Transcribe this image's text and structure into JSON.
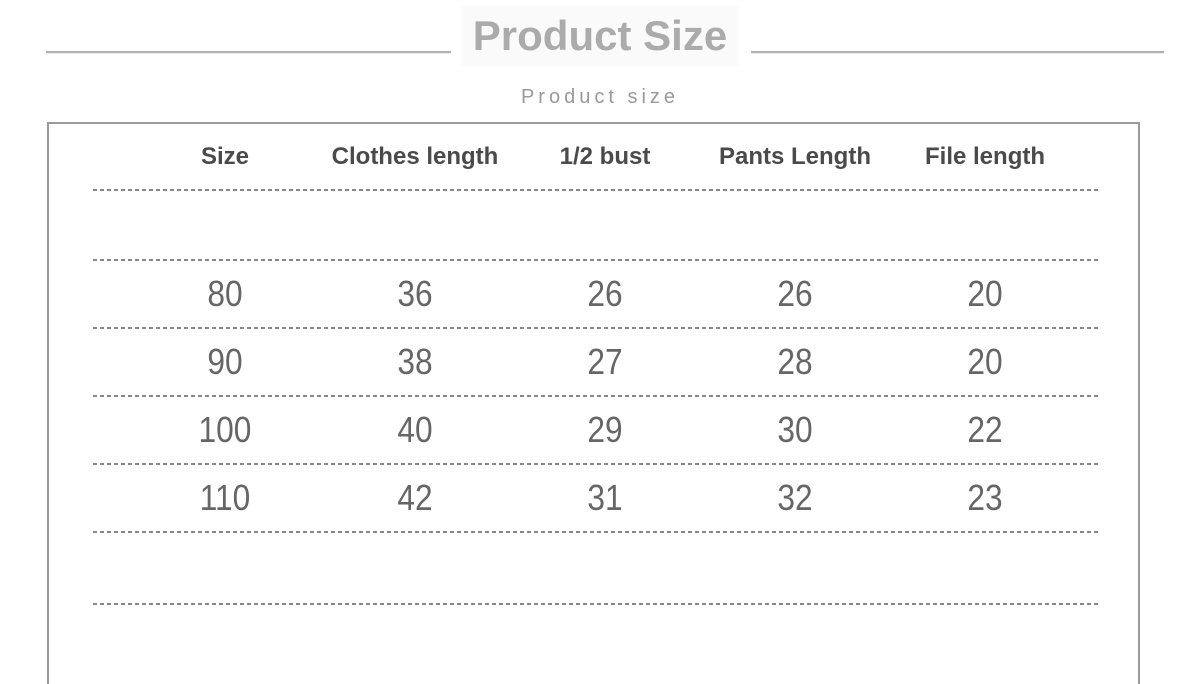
{
  "header": {
    "title": "Product Size",
    "subtitle": "Product size"
  },
  "table": {
    "headers": [
      "Size",
      "Clothes length",
      "1/2 bust",
      "Pants Length",
      "File length"
    ],
    "rows": [
      [
        "80",
        "36",
        "26",
        "26",
        "20"
      ],
      [
        "90",
        "38",
        "27",
        "28",
        "20"
      ],
      [
        "100",
        "40",
        "29",
        "30",
        "22"
      ],
      [
        "110",
        "42",
        "31",
        "32",
        "23"
      ]
    ]
  },
  "chart_data": {
    "type": "table",
    "title": "Product Size",
    "subtitle": "Product size",
    "columns": [
      "Size",
      "Clothes length",
      "1/2 bust",
      "Pants Length",
      "File length"
    ],
    "rows": [
      [
        80,
        36,
        26,
        26,
        20
      ],
      [
        90,
        38,
        27,
        28,
        20
      ],
      [
        100,
        40,
        29,
        30,
        22
      ],
      [
        110,
        42,
        31,
        32,
        23
      ]
    ],
    "layout_hints": {
      "separators": "horizontal dashed lines between rows",
      "outer_border": "solid gray rectangle, cut off at bottom of image",
      "empty_row_after_header": true,
      "empty_row_after_last_data_row": true
    }
  },
  "colors": {
    "title": "#ababab",
    "subtitle": "#9a9a9a",
    "header_text": "#4a4a4a",
    "cell_text": "#666666",
    "table_border": "#9b9b9b",
    "dashed_line": "#868686",
    "divider_line": "#b2b2b2"
  }
}
